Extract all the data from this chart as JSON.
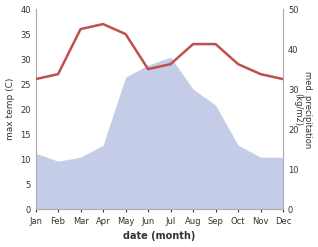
{
  "months": [
    "Jan",
    "Feb",
    "Mar",
    "Apr",
    "May",
    "Jun",
    "Jul",
    "Aug",
    "Sep",
    "Oct",
    "Nov",
    "Dec"
  ],
  "temperature": [
    26,
    27,
    36,
    37,
    35,
    28,
    29,
    33,
    33,
    29,
    27,
    26
  ],
  "precipitation": [
    14,
    12,
    13,
    16,
    33,
    36,
    38,
    30,
    26,
    16,
    13,
    13
  ],
  "temp_color": "#c0504d",
  "precip_fill_color": "#c5cce8",
  "ylabel_left": "max temp (C)",
  "ylabel_right": "med. precipitation\n(kg/m2)",
  "xlabel": "date (month)",
  "ylim_left": [
    0,
    40
  ],
  "ylim_right": [
    0,
    50
  ],
  "precip_scale": 1.25,
  "bg_color": "#ffffff"
}
